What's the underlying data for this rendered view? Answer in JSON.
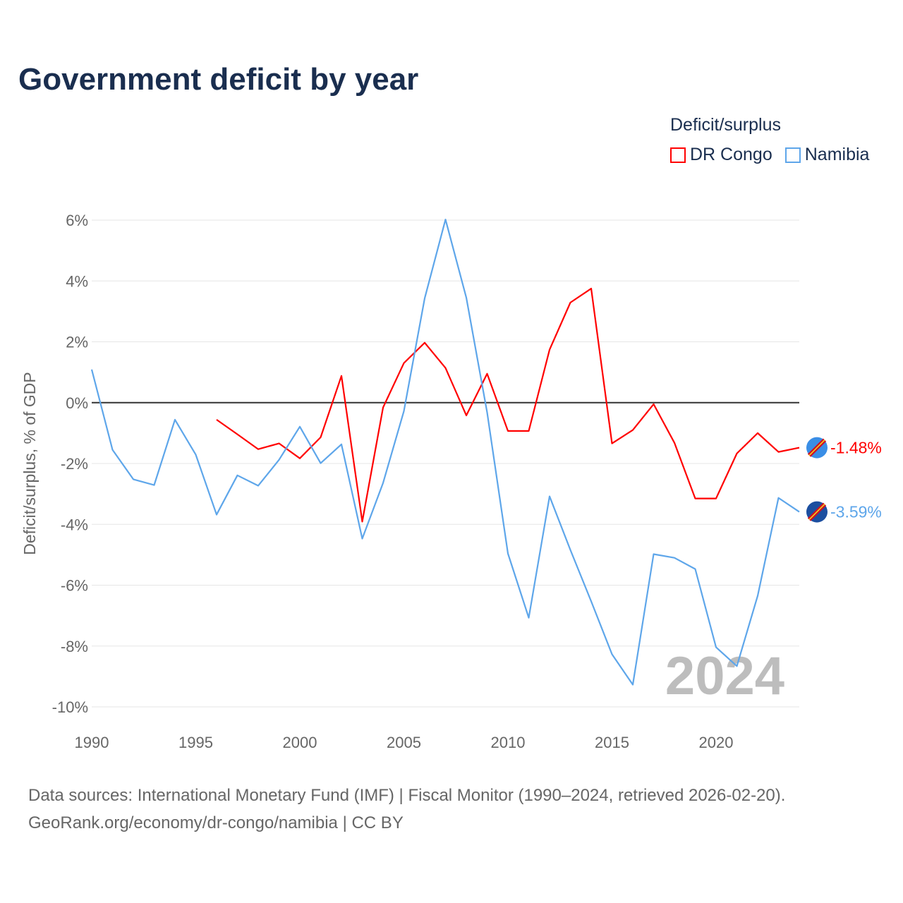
{
  "title": "Government deficit by year",
  "source_line1": "Data sources: International Monetary Fund (IMF) | Fiscal Monitor (1990–2024, retrieved 2026-02-20).",
  "source_line2": "GeoRank.org/economy/dr-congo/namibia | CC BY",
  "chart_data": {
    "type": "line",
    "title": "Government deficit by year",
    "ylabel": "Deficit/surplus, % of GDP",
    "xlabel": "",
    "legend_title": "Deficit/surplus",
    "legend_position": "top-right",
    "watermark_year": "2024",
    "xlim": [
      1990,
      2024
    ],
    "ylim": [
      -10,
      6
    ],
    "xticks": [
      1990,
      1995,
      2000,
      2005,
      2010,
      2015,
      2020
    ],
    "yticks": [
      6,
      4,
      2,
      0,
      -2,
      -4,
      -6,
      -8,
      -10
    ],
    "ytick_labels": [
      "6%",
      "4%",
      "2%",
      "0%",
      "-2%",
      "-4%",
      "-6%",
      "-8%",
      "-10%"
    ],
    "series": [
      {
        "name": "DR Congo",
        "color": "#ff0000",
        "end_label": "-1.48%",
        "x": [
          1996,
          1997,
          1998,
          1999,
          2000,
          2001,
          2002,
          2003,
          2004,
          2005,
          2006,
          2007,
          2008,
          2009,
          2010,
          2011,
          2012,
          2013,
          2014,
          2015,
          2016,
          2017,
          2018,
          2019,
          2020,
          2021,
          2022,
          2023,
          2024
        ],
        "values": [
          -0.56,
          -1.04,
          -1.53,
          -1.34,
          -1.83,
          -1.14,
          0.88,
          -3.91,
          -0.16,
          1.3,
          1.97,
          1.14,
          -0.42,
          0.95,
          -0.93,
          -0.93,
          1.74,
          3.29,
          3.75,
          -1.34,
          -0.9,
          -0.05,
          -1.32,
          -3.15,
          -3.15,
          -1.67,
          -1.0,
          -1.62,
          -1.48
        ]
      },
      {
        "name": "Namibia",
        "color": "#5ea6ea",
        "end_label": "-3.59%",
        "x": [
          1990,
          1991,
          1992,
          1993,
          1994,
          1995,
          1996,
          1997,
          1998,
          1999,
          2000,
          2001,
          2002,
          2003,
          2004,
          2005,
          2006,
          2007,
          2008,
          2009,
          2010,
          2011,
          2012,
          2013,
          2014,
          2015,
          2016,
          2017,
          2018,
          2019,
          2020,
          2021,
          2022,
          2023,
          2024
        ],
        "values": [
          1.09,
          -1.55,
          -2.52,
          -2.71,
          -0.56,
          -1.71,
          -3.68,
          -2.39,
          -2.73,
          -1.88,
          -0.79,
          -1.99,
          -1.37,
          -4.47,
          -2.64,
          -0.28,
          3.43,
          6.02,
          3.45,
          -0.32,
          -4.96,
          -7.07,
          -3.08,
          -4.84,
          -6.53,
          -8.27,
          -9.27,
          -4.98,
          -5.1,
          -5.47,
          -8.04,
          -8.66,
          -6.35,
          -3.13,
          -3.59
        ]
      }
    ]
  }
}
